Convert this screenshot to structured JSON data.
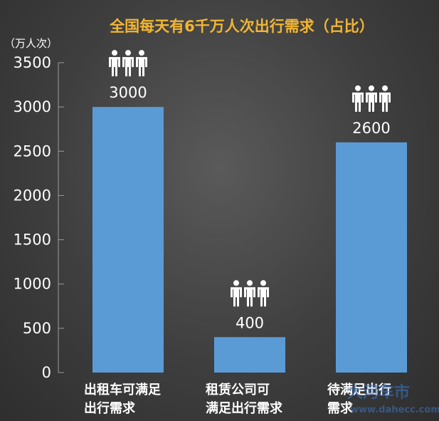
{
  "chart_data": {
    "type": "bar",
    "title": "全国每天有6千万人次出行需求（占比）",
    "ylabel": "（万人次）",
    "xlabel": "",
    "categories": [
      [
        "出租车可满足",
        "出行需求"
      ],
      [
        "租赁公司可",
        "满足出行需求"
      ],
      [
        "待满足出行",
        "需求"
      ]
    ],
    "values": [
      3000,
      400,
      2600
    ],
    "ylim": [
      0,
      3500
    ],
    "yticks": [
      0,
      500,
      1000,
      1500,
      2000,
      2500,
      3000,
      3500
    ],
    "bar_color": "#5b9bd5",
    "grid": false,
    "legend": "none",
    "label_icon": "three-people-icon"
  },
  "watermark": {
    "text": "大河车市",
    "url": "www.dahecc.com"
  }
}
